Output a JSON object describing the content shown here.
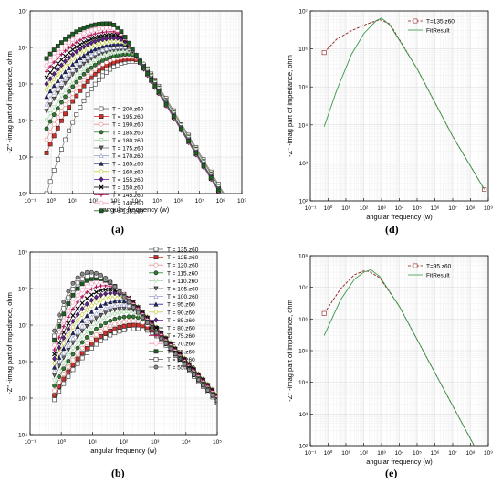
{
  "chart_data": [
    {
      "id": "a",
      "type": "line",
      "panel_label": "(a)",
      "xlabel": "angular frequency (w)",
      "ylabel": "-Z'' -imag part of impedance, ohm",
      "xscale": "log",
      "yscale": "log",
      "xlim": [
        0.1,
        1000000000
      ],
      "ylim": [
        100,
        10000000
      ],
      "x_ticks": [
        "10⁻¹",
        "10⁰",
        "10¹",
        "10²",
        "10³",
        "10⁴",
        "10⁵",
        "10⁶",
        "10⁷",
        "10⁸",
        "10⁹"
      ],
      "y_ticks": [
        "10²",
        "10³",
        "10⁴",
        "10⁵",
        "10⁶",
        "10⁷"
      ],
      "legend_position": "center-left",
      "grid": true,
      "x_min": 0.6,
      "x_max": 600000000,
      "series": [
        {
          "name": "T = 200.z60",
          "color": "#ffffff",
          "marker": "square-open",
          "peak_x": 9000,
          "peak_y": 420000,
          "low_y": 100
        },
        {
          "name": "T = 195.z60",
          "color": "#d3302c",
          "marker": "square",
          "peak_x": 7000,
          "peak_y": 480000,
          "low_y": 1300
        },
        {
          "name": "T = 190.z60",
          "color": "#e08a8a",
          "marker": "circle-open",
          "peak_x": 6000,
          "peak_y": 560000,
          "low_y": 3000
        },
        {
          "name": "T = 185.z60",
          "color": "#2e7d32",
          "marker": "circle",
          "peak_x": 5000,
          "peak_y": 650000,
          "low_y": 6000
        },
        {
          "name": "T = 180.z60",
          "color": "#a5d6a7",
          "marker": "triangle-down-open",
          "peak_x": 4000,
          "peak_y": 760000,
          "low_y": 10000
        },
        {
          "name": "T = 175.z60",
          "color": "#6b6b6b",
          "marker": "triangle-down",
          "peak_x": 3000,
          "peak_y": 900000,
          "low_y": 18000
        },
        {
          "name": "T = 170.z60",
          "color": "#9aa0c8",
          "marker": "triangle-open",
          "peak_x": 2500,
          "peak_y": 1050000,
          "low_y": 28000
        },
        {
          "name": "T = 165.z60",
          "color": "#1a237e",
          "marker": "triangle",
          "peak_x": 2000,
          "peak_y": 1250000,
          "low_y": 45000
        },
        {
          "name": "T = 160.z60",
          "color": "#c0ca33",
          "marker": "diamond-open",
          "peak_x": 1500,
          "peak_y": 1500000,
          "low_y": 70000
        },
        {
          "name": "T = 155.z60",
          "color": "#6a1b9a",
          "marker": "diamond",
          "peak_x": 1200,
          "peak_y": 1800000,
          "low_y": 100000
        },
        {
          "name": "T = 150.z60",
          "color": "#000000",
          "marker": "x",
          "peak_x": 1000,
          "peak_y": 2200000,
          "low_y": 150000
        },
        {
          "name": "T = 145.z60",
          "color": "#ad1457",
          "marker": "plus",
          "peak_x": 800,
          "peak_y": 2700000,
          "low_y": 220000
        },
        {
          "name": "T = 140.z60",
          "color": "#f48fb1",
          "marker": "circle-open",
          "peak_x": 650,
          "peak_y": 3400000,
          "low_y": 320000
        },
        {
          "name": "T = 135.z60",
          "color": "#1b5e20",
          "marker": "square",
          "peak_x": 500,
          "peak_y": 4500000,
          "low_y": 500000
        }
      ]
    },
    {
      "id": "b",
      "type": "line",
      "panel_label": "(b)",
      "xlabel": "angular frequency (w)",
      "ylabel": "-Z'' -imag part of impedance, ohm",
      "xscale": "log",
      "yscale": "log",
      "xlim": [
        0.1,
        100000
      ],
      "ylim": [
        10000,
        1000000000
      ],
      "x_ticks": [
        "10⁻¹",
        "10⁰",
        "10¹",
        "10²",
        "10³",
        "10⁴",
        "10⁵"
      ],
      "y_ticks": [
        "10⁴",
        "10⁵",
        "10⁶",
        "10⁷",
        "10⁸",
        "10⁹"
      ],
      "legend_position": "top-right",
      "grid": true,
      "x_min": 0.6,
      "x_max": 100000,
      "series": [
        {
          "name": "T = 135.z60",
          "color": "#ffffff",
          "marker": "square-open",
          "peak_x": 300,
          "peak_y": 8000000,
          "low_y": 90000
        },
        {
          "name": "T = 125.z60",
          "color": "#d3302c",
          "marker": "square",
          "peak_x": 260,
          "peak_y": 10000000,
          "low_y": 120000
        },
        {
          "name": "T = 120.z60",
          "color": "#e08a8a",
          "marker": "circle-open",
          "peak_x": 220,
          "peak_y": 13000000,
          "low_y": 160000
        },
        {
          "name": "T = 115.z60",
          "color": "#2e7d32",
          "marker": "circle",
          "peak_x": 180,
          "peak_y": 17000000,
          "low_y": 220000
        },
        {
          "name": "T = 110.z60",
          "color": "#a5d6a7",
          "marker": "triangle-down-open",
          "peak_x": 150,
          "peak_y": 22000000,
          "low_y": 300000
        },
        {
          "name": "T = 105.z60",
          "color": "#6b6b6b",
          "marker": "triangle-down",
          "peak_x": 120,
          "peak_y": 28000000,
          "low_y": 420000
        },
        {
          "name": "T = 100.z60",
          "color": "#9aa0c8",
          "marker": "triangle-open",
          "peak_x": 100,
          "peak_y": 36000000,
          "low_y": 550000
        },
        {
          "name": "T = 95.z60",
          "color": "#1a237e",
          "marker": "triangle",
          "peak_x": 80,
          "peak_y": 46000000,
          "low_y": 700000
        },
        {
          "name": "T = 90.z60",
          "color": "#c0ca33",
          "marker": "diamond-open",
          "peak_x": 60,
          "peak_y": 60000000,
          "low_y": 900000
        },
        {
          "name": "T = 85.z60",
          "color": "#6a1b9a",
          "marker": "diamond",
          "peak_x": 45,
          "peak_y": 75000000,
          "low_y": 1200000
        },
        {
          "name": "T = 80.z60",
          "color": "#000000",
          "marker": "x",
          "peak_x": 35,
          "peak_y": 95000000,
          "low_y": 1600000
        },
        {
          "name": "T = 75.z60",
          "color": "#ad1457",
          "marker": "plus",
          "peak_x": 25,
          "peak_y": 120000000,
          "low_y": 2100000
        },
        {
          "name": "T = 70.z60",
          "color": "#f48fb1",
          "marker": "circle-open",
          "peak_x": 18,
          "peak_y": 150000000,
          "low_y": 2800000
        },
        {
          "name": "T = 65.z60",
          "color": "#1b5e20",
          "marker": "square",
          "peak_x": 13,
          "peak_y": 190000000,
          "low_y": 3800000
        },
        {
          "name": "T = 60.z60",
          "color": "#ffffff",
          "marker": "square-open",
          "peak_x": 10,
          "peak_y": 230000000,
          "low_y": 5000000
        },
        {
          "name": "T = 55.z60",
          "color": "#8c8c8c",
          "marker": "circle",
          "peak_x": 8,
          "peak_y": 280000000,
          "low_y": 7000000
        }
      ]
    },
    {
      "id": "d",
      "type": "line",
      "panel_label": "(d)",
      "xlabel": "angular frequency (w)",
      "ylabel": "-Z'' -imag part of impedance, ohm",
      "xscale": "log",
      "yscale": "log",
      "xlim": [
        0.1,
        1000000000
      ],
      "ylim": [
        100,
        10000000
      ],
      "x_ticks": [
        "10⁻¹",
        "10⁰",
        "10¹",
        "10²",
        "10³",
        "10⁴",
        "10⁵",
        "10⁶",
        "10⁷",
        "10⁸",
        "10⁹"
      ],
      "y_ticks": [
        "10²",
        "10³",
        "10⁴",
        "10⁵",
        "10⁶",
        "10⁷"
      ],
      "legend_position": "top-right",
      "grid": true,
      "series": [
        {
          "name": "T=135.z60",
          "color": "#8b1a1a",
          "style": "dashed",
          "marker": "square-open",
          "x": [
            0.6,
            3,
            20,
            100,
            500,
            900,
            3000,
            100000,
            10000000,
            600000000
          ],
          "y": [
            800000,
            1800000,
            3000000,
            4200000,
            5500000,
            5800000,
            4500000,
            300000,
            5000,
            200
          ]
        },
        {
          "name": "FitResult",
          "color": "#3a9a4a",
          "style": "solid",
          "marker": "none",
          "x": [
            0.6,
            3,
            20,
            100,
            500,
            1000,
            3000,
            100000,
            10000000,
            600000000
          ],
          "y": [
            9000,
            80000,
            700000,
            2500000,
            5500000,
            6500000,
            4200000,
            300000,
            5000,
            200
          ]
        }
      ]
    },
    {
      "id": "e",
      "type": "line",
      "panel_label": "(e)",
      "xlabel": "angular frequency (w)",
      "ylabel": "-Z'' -imag part of impedance, ohm",
      "xscale": "log",
      "yscale": "log",
      "xlim": [
        0.1,
        1000000000
      ],
      "ylim": [
        100,
        100000000
      ],
      "x_ticks": [
        "10⁻¹",
        "10⁰",
        "10¹",
        "10²",
        "10³",
        "10⁴",
        "10⁵",
        "10⁶",
        "10⁷",
        "10⁸",
        "10⁹"
      ],
      "y_ticks": [
        "10²",
        "10³",
        "10⁴",
        "10⁵",
        "10⁶",
        "10⁷",
        "10⁸"
      ],
      "legend_position": "top-right",
      "grid": true,
      "series": [
        {
          "name": "T=95.z60",
          "color": "#8b1a1a",
          "style": "dashed",
          "marker": "square-open",
          "x": [
            0.6,
            5,
            30,
            100,
            200,
            800,
            10000,
            1000000,
            600000000
          ],
          "y": [
            1500000,
            9000000,
            25000000,
            33000000,
            32000000,
            20000000,
            2500000,
            20000,
            25
          ]
        },
        {
          "name": "FitResult",
          "color": "#3a9a4a",
          "style": "solid",
          "marker": "none",
          "x": [
            0.6,
            5,
            30,
            100,
            250,
            800,
            10000,
            1000000,
            600000000
          ],
          "y": [
            300000,
            4000000,
            18000000,
            30000000,
            36000000,
            22000000,
            2500000,
            20000,
            25
          ]
        }
      ]
    }
  ]
}
